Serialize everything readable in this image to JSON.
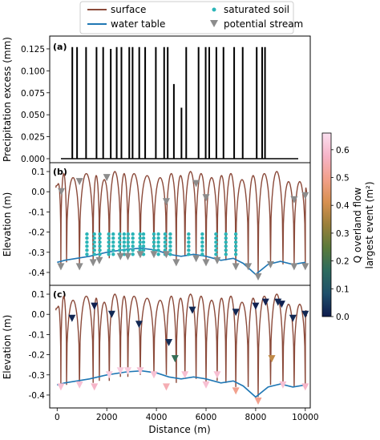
{
  "legend": {
    "items": [
      {
        "label": "surface",
        "kind": "line",
        "color": "#8b4a3a"
      },
      {
        "label": "saturated soil",
        "kind": "dot",
        "color": "#2bb5b8"
      },
      {
        "label": "water table",
        "kind": "line",
        "color": "#1f77b4"
      },
      {
        "label": "potential stream",
        "kind": "triangle",
        "color": "#8c8c8c"
      }
    ]
  },
  "colorbar": {
    "label_line1": "Q overland flow",
    "label_line2": "largest event (m²)",
    "ticks": [
      "0.0",
      "0.1",
      "0.2",
      "0.3",
      "0.4",
      "0.5",
      "0.6"
    ],
    "tick_values": [
      0.0,
      0.1,
      0.2,
      0.3,
      0.4,
      0.5,
      0.6
    ],
    "range": [
      0,
      0.66
    ],
    "colormap": [
      "#0e1b4d",
      "#1f4f6a",
      "#2d6b5e",
      "#5a7a3a",
      "#9a7f3a",
      "#d89050",
      "#f2a08a",
      "#f6b4c8",
      "#fbe0f0"
    ]
  },
  "chart_data": [
    {
      "panel": "(a)",
      "type": "bar",
      "ylabel": "Precipitation excess (mm)",
      "ylim": [
        0,
        0.135
      ],
      "yticks": [
        "0.000",
        "0.025",
        "0.050",
        "0.075",
        "0.100",
        "0.125"
      ],
      "ytick_values": [
        0,
        0.025,
        0.05,
        0.075,
        0.1,
        0.125
      ],
      "bars_x": [
        4.8,
        6.8,
        10.6,
        15,
        17.8,
        21,
        23.5,
        25.5,
        28.8,
        30.2,
        33,
        35.5,
        40,
        43.5,
        45,
        47.6,
        50.8,
        52.8,
        58,
        61,
        62.5,
        65.5,
        68.5,
        73,
        76.6,
        82.5,
        84.8,
        86
      ],
      "bars_value": [
        0.127,
        0.127,
        0.127,
        0.127,
        0.127,
        0.125,
        0.127,
        0.127,
        0.127,
        0.127,
        0.127,
        0.127,
        0.127,
        0.127,
        0.127,
        0.085,
        0.058,
        0.127,
        0.127,
        0.127,
        0.127,
        0.127,
        0.127,
        0.127,
        0.127,
        0.127,
        0.127,
        0.127
      ],
      "xlim": [
        0,
        100
      ],
      "xunit": "event index"
    },
    {
      "panel": "(b)",
      "type": "line",
      "ylabel": "Elevation (m)",
      "ylim": [
        -0.44,
        0.12
      ],
      "yticks": [
        "0.1",
        "0.0",
        "-0.1",
        "-0.2",
        "-0.3",
        "-0.4"
      ],
      "ytick_values": [
        0.1,
        0.0,
        -0.1,
        -0.2,
        -0.3,
        -0.4
      ],
      "xlim": [
        -300,
        10200
      ],
      "valleys_x": [
        150,
        380,
        900,
        1450,
        1700,
        2100,
        2550,
        2850,
        3350,
        3900,
        4400,
        4800,
        5150,
        5600,
        6000,
        6450,
        6800,
        7200,
        7700,
        8100,
        8600,
        9100,
        9550,
        10000
      ],
      "valleys_depth": [
        -0.36,
        -0.35,
        -0.36,
        -0.34,
        -0.33,
        -0.33,
        -0.31,
        -0.31,
        -0.3,
        -0.3,
        -0.3,
        -0.34,
        -0.32,
        -0.32,
        -0.34,
        -0.33,
        -0.34,
        -0.36,
        -0.36,
        -0.41,
        -0.35,
        -0.36,
        -0.36,
        -0.36
      ],
      "peaks_value": [
        0.04,
        0.09,
        0.07,
        0.09,
        0.08,
        0.06,
        0.1,
        0.09,
        0.09,
        0.08,
        0.07,
        0.09,
        0.08,
        0.1,
        0.09,
        0.07,
        0.08,
        0.09,
        0.06,
        0.08,
        0.09,
        0.1,
        0.05,
        0.05,
        0.02
      ],
      "water_table": [
        [
          0,
          -0.35
        ],
        [
          300,
          -0.34
        ],
        [
          800,
          -0.33
        ],
        [
          1300,
          -0.32
        ],
        [
          2000,
          -0.3
        ],
        [
          2800,
          -0.285
        ],
        [
          3400,
          -0.28
        ],
        [
          4000,
          -0.29
        ],
        [
          4500,
          -0.31
        ],
        [
          5000,
          -0.32
        ],
        [
          5500,
          -0.31
        ],
        [
          6000,
          -0.32
        ],
        [
          6600,
          -0.34
        ],
        [
          7100,
          -0.33
        ],
        [
          7500,
          -0.355
        ],
        [
          8000,
          -0.41
        ],
        [
          8500,
          -0.36
        ],
        [
          9000,
          -0.345
        ],
        [
          9500,
          -0.36
        ],
        [
          10000,
          -0.35
        ]
      ],
      "saturated_x": [
        1200,
        1500,
        1720,
        2080,
        2260,
        2520,
        2700,
        2860,
        3050,
        3340,
        3480,
        3900,
        4080,
        4350,
        4560,
        5300,
        5850,
        6400,
        6800,
        7200
      ],
      "streams_x": [
        150,
        900,
        1450,
        1700,
        2550,
        2850,
        3350,
        3900,
        4400,
        4800,
        5600,
        6000,
        6450,
        7200,
        7700,
        8100,
        8600,
        9550,
        10000
      ],
      "streams_elev": [
        -0.36,
        -0.36,
        -0.34,
        -0.33,
        -0.31,
        -0.31,
        -0.3,
        -0.3,
        -0.3,
        -0.34,
        -0.32,
        -0.34,
        -0.33,
        -0.36,
        -0.36,
        -0.41,
        -0.35,
        -0.36,
        -0.36
      ]
    },
    {
      "panel": "(c)",
      "type": "line",
      "xlabel": "Distance (m)",
      "ylabel": "Elevation (m)",
      "ylim": [
        -0.44,
        0.12
      ],
      "yticks": [
        "0.1",
        "0.0",
        "-0.1",
        "-0.2",
        "-0.3",
        "-0.4"
      ],
      "ytick_values": [
        0.1,
        0.0,
        -0.1,
        -0.2,
        -0.3,
        -0.4
      ],
      "xlim": [
        -300,
        10200
      ],
      "xticks": [
        "0",
        "2000",
        "4000",
        "6000",
        "8000",
        "10000"
      ],
      "xtick_values": [
        0,
        2000,
        4000,
        6000,
        8000,
        10000
      ],
      "stream_markers": [
        {
          "x": 150,
          "elev": -0.36,
          "q": 0.6
        },
        {
          "x": 900,
          "elev": -0.35,
          "q": 0.6
        },
        {
          "x": 1500,
          "elev": -0.36,
          "q": 0.58
        },
        {
          "x": 2100,
          "elev": -0.3,
          "q": 0.62
        },
        {
          "x": 2550,
          "elev": -0.28,
          "q": 0.62
        },
        {
          "x": 2850,
          "elev": -0.28,
          "q": 0.62
        },
        {
          "x": 3350,
          "elev": -0.28,
          "q": 0.6
        },
        {
          "x": 3900,
          "elev": -0.3,
          "q": 0.6
        },
        {
          "x": 4400,
          "elev": -0.36,
          "q": 0.55
        },
        {
          "x": 5150,
          "elev": -0.3,
          "q": 0.6
        },
        {
          "x": 6000,
          "elev": -0.35,
          "q": 0.6
        },
        {
          "x": 6450,
          "elev": -0.3,
          "q": 0.6
        },
        {
          "x": 7200,
          "elev": -0.38,
          "q": 0.5
        },
        {
          "x": 8100,
          "elev": -0.43,
          "q": 0.5
        },
        {
          "x": 9100,
          "elev": -0.35,
          "q": 0.6
        },
        {
          "x": 10000,
          "elev": -0.36,
          "q": 0.58
        },
        {
          "x": 600,
          "elev": -0.02,
          "q": 0.02
        },
        {
          "x": 1500,
          "elev": 0.04,
          "q": 0.01
        },
        {
          "x": 2200,
          "elev": 0.0,
          "q": 0.02
        },
        {
          "x": 3300,
          "elev": -0.05,
          "q": 0.02
        },
        {
          "x": 4500,
          "elev": -0.14,
          "q": 0.03
        },
        {
          "x": 4750,
          "elev": -0.22,
          "q": 0.18
        },
        {
          "x": 5450,
          "elev": 0.02,
          "q": 0.02
        },
        {
          "x": 7200,
          "elev": 0.01,
          "q": 0.02
        },
        {
          "x": 8000,
          "elev": 0.04,
          "q": 0.01
        },
        {
          "x": 8400,
          "elev": 0.06,
          "q": 0.01
        },
        {
          "x": 8650,
          "elev": -0.22,
          "q": 0.38
        },
        {
          "x": 8900,
          "elev": 0.06,
          "q": 0.02
        },
        {
          "x": 9050,
          "elev": 0.05,
          "q": 0.01
        },
        {
          "x": 9500,
          "elev": -0.02,
          "q": 0.02
        },
        {
          "x": 10000,
          "elev": 0.0,
          "q": 0.02
        }
      ]
    }
  ]
}
